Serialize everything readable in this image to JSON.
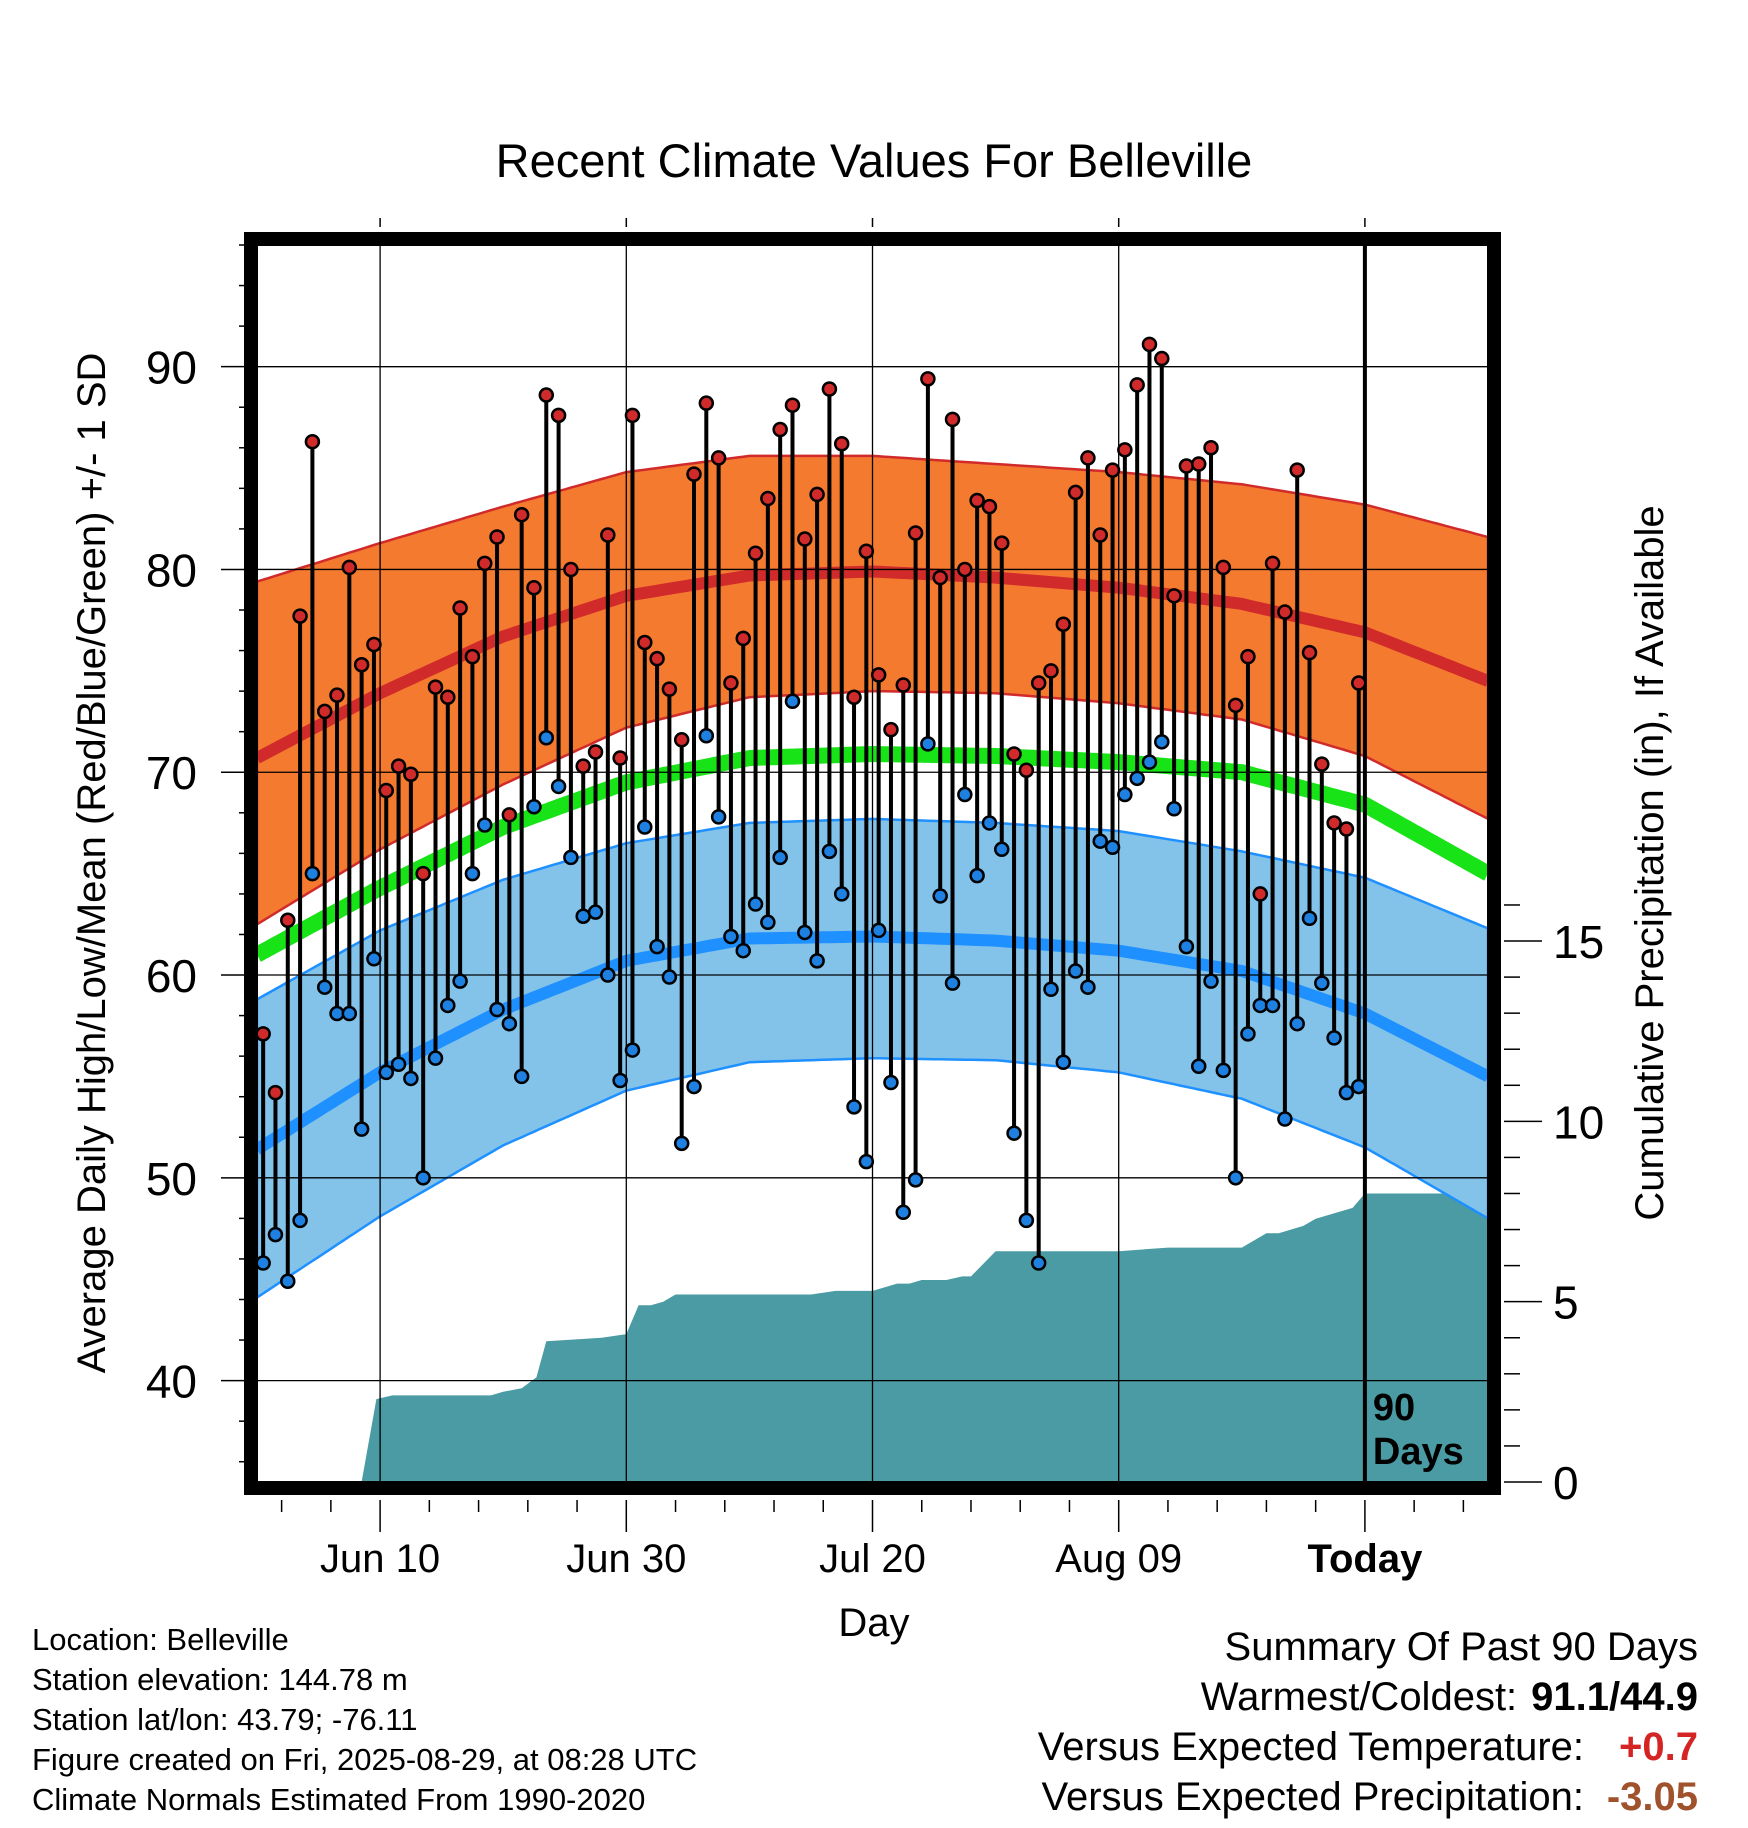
{
  "chart_data": {
    "type": "line",
    "title": "Recent Climate Values For Belleville",
    "xlabel": "Day",
    "ylabel": "Average Daily High/Low/Mean (Red/Blue/Green) +/- 1 SD",
    "y2label": "Cumulative Precipitation (in), If Available",
    "ylim": [
      35,
      96
    ],
    "y2lim": [
      0,
      34.3
    ],
    "yticks": [
      "40",
      "50",
      "60",
      "70",
      "80",
      "90"
    ],
    "y2ticks": [
      "0",
      "5",
      "10",
      "15"
    ],
    "xticks": [
      "Jun 10",
      "Jun 30",
      "Jul 20",
      "Aug 09",
      "Today"
    ],
    "x_range_days": [
      0,
      100
    ],
    "today_day": 90,
    "today_label": "90\nDays",
    "grid": true,
    "normals": {
      "x": [
        0,
        10,
        20,
        30,
        40,
        50,
        60,
        70,
        80,
        90,
        100
      ],
      "high_mean": [
        70.7,
        73.9,
        76.7,
        78.7,
        79.7,
        79.9,
        79.6,
        79.1,
        78.3,
        76.9,
        74.5
      ],
      "high_upper": [
        79.4,
        81.3,
        83.1,
        84.8,
        85.6,
        85.6,
        85.2,
        84.8,
        84.2,
        83.2,
        81.6
      ],
      "high_lower": [
        62.5,
        66.2,
        69.4,
        72.2,
        73.7,
        74.0,
        73.9,
        73.4,
        72.6,
        70.8,
        67.7
      ],
      "mean": [
        61.0,
        64.3,
        67.3,
        69.5,
        70.7,
        70.9,
        70.8,
        70.5,
        70.0,
        68.4,
        65.0
      ],
      "low_mean": [
        51.4,
        55.2,
        58.3,
        60.7,
        61.8,
        61.9,
        61.7,
        61.2,
        60.2,
        58.1,
        55.0
      ],
      "low_upper": [
        58.8,
        62.2,
        64.7,
        66.5,
        67.5,
        67.7,
        67.5,
        67.1,
        66.1,
        64.8,
        62.3
      ],
      "low_lower": [
        44.1,
        48.1,
        51.6,
        54.3,
        55.7,
        55.9,
        55.8,
        55.2,
        53.9,
        51.5,
        48.0
      ]
    },
    "series": [
      {
        "name": "High",
        "values": [
          57.1,
          54.2,
          62.7,
          77.7,
          86.3,
          73.0,
          73.8,
          80.1,
          75.3,
          76.3,
          69.1,
          70.3,
          69.9,
          65.0,
          74.2,
          73.7,
          78.1,
          75.7,
          80.3,
          81.6,
          67.9,
          82.7,
          79.1,
          88.6,
          87.6,
          80.0,
          70.3,
          71.0,
          81.7,
          70.7,
          87.6,
          76.4,
          75.6,
          74.1,
          71.6,
          84.7,
          88.2,
          85.5,
          74.4,
          76.6,
          80.8,
          83.5,
          86.9,
          88.1,
          81.5,
          83.7,
          88.9,
          86.2,
          73.7,
          80.9,
          74.8,
          72.1,
          74.3,
          81.8,
          89.4,
          79.6,
          87.4,
          80.0,
          83.4,
          83.1,
          81.3,
          70.9,
          70.1,
          74.4,
          75.0,
          77.3,
          83.8,
          85.5,
          81.7,
          84.9,
          85.9,
          89.1,
          91.1,
          90.4,
          78.7,
          85.1,
          85.2,
          86.0,
          80.1,
          73.3,
          75.7,
          64.0,
          80.3,
          77.9,
          84.9,
          75.9,
          70.4,
          67.5,
          67.2,
          74.4
        ]
      },
      {
        "name": "Low",
        "values": [
          45.8,
          47.2,
          44.9,
          47.9,
          65.0,
          59.4,
          58.1,
          58.1,
          52.4,
          60.8,
          55.2,
          55.6,
          54.9,
          50.0,
          55.9,
          58.5,
          59.7,
          65.0,
          67.4,
          58.3,
          57.6,
          55.0,
          68.3,
          71.7,
          69.3,
          65.8,
          62.9,
          63.1,
          60.0,
          54.8,
          56.3,
          67.3,
          61.4,
          59.9,
          51.7,
          54.5,
          71.8,
          67.8,
          61.9,
          61.2,
          63.5,
          62.6,
          65.8,
          73.5,
          62.1,
          60.7,
          66.1,
          64.0,
          53.5,
          50.8,
          62.2,
          54.7,
          48.3,
          49.9,
          71.4,
          63.9,
          59.6,
          68.9,
          64.9,
          67.5,
          66.2,
          52.2,
          47.9,
          45.8,
          59.3,
          55.7,
          60.2,
          59.4,
          66.6,
          66.3,
          68.9,
          69.7,
          70.5,
          71.5,
          68.2,
          61.4,
          55.5,
          59.7,
          55.3,
          50.0,
          57.1,
          58.5,
          58.5,
          52.9,
          57.6,
          62.8,
          59.6,
          56.9,
          54.2,
          54.5
        ]
      },
      {
        "name": "Cumulative Precipitation",
        "x": [
          0,
          8.5,
          9.7,
          11,
          19,
          20,
          21.5,
          22.7,
          23.5,
          28,
          30,
          31,
          32,
          33,
          34,
          40,
          45,
          47,
          50,
          52,
          53,
          54,
          56,
          57.3,
          58,
          60,
          62,
          64,
          66,
          70,
          74,
          78,
          80,
          82,
          83,
          85,
          86,
          87,
          88,
          89,
          90,
          100
        ],
        "values": [
          0,
          0,
          2.3,
          2.4,
          2.4,
          2.5,
          2.6,
          2.9,
          3.9,
          4.0,
          4.1,
          4.9,
          4.9,
          5.0,
          5.2,
          5.2,
          5.2,
          5.3,
          5.3,
          5.5,
          5.5,
          5.6,
          5.6,
          5.7,
          5.7,
          6.4,
          6.4,
          6.4,
          6.4,
          6.4,
          6.5,
          6.5,
          6.5,
          6.9,
          6.9,
          7.1,
          7.3,
          7.4,
          7.5,
          7.6,
          8.0,
          8.0
        ]
      }
    ],
    "colors": {
      "high_band": "#F47A30",
      "high_line": "#D12A2A",
      "low_band": "#83C3EA",
      "low_line": "#1E90FF",
      "mean_line": "#17E317",
      "precip_fill": "#4A9BA3",
      "high_marker": "#D12A2A",
      "low_marker": "#1E80E0",
      "temp_positive": "#D42424",
      "precip_negative": "#A0522D"
    }
  },
  "footer": {
    "location": "Location: Belleville",
    "elevation": "Station elevation: 144.78 m",
    "latlon": "Station lat/lon: 43.79; -76.11",
    "created": "Figure created on Fri, 2025-08-29, at 08:28 UTC",
    "normals": "Climate Normals Estimated From 1990-2020"
  },
  "summary": {
    "heading": "Summary Of Past 90 Days",
    "warm_cold_label": "Warmest/Coldest:",
    "warm_cold_value": "91.1/44.9",
    "temp_label": "Versus Expected Temperature:",
    "temp_value": "+0.7",
    "precip_label": "Versus Expected Precipitation:",
    "precip_value": "-3.05"
  }
}
